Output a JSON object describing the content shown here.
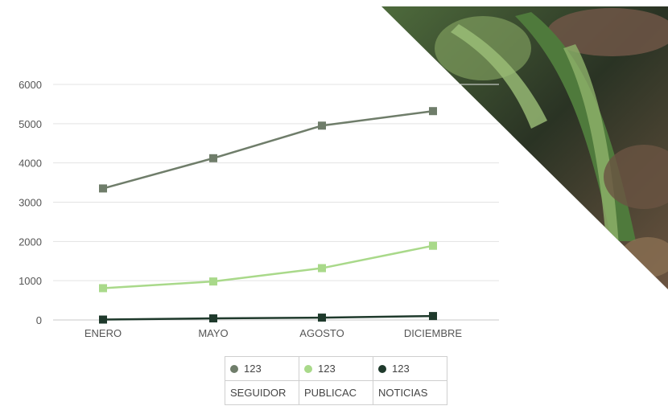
{
  "chart_data": {
    "type": "line",
    "title": "",
    "xlabel": "",
    "ylabel": "",
    "categories": [
      "ENERO",
      "MAYO",
      "AGOSTO",
      "DICIEMBRE"
    ],
    "ylim": [
      0,
      6000
    ],
    "yticks": [
      0,
      1000,
      2000,
      3000,
      4000,
      5000,
      6000
    ],
    "grid": true,
    "legend_placement": "bottom",
    "series": [
      {
        "name": "SEGUIDOR",
        "legend_value": "123",
        "color": "#6f7d6a",
        "values": [
          3350,
          4120,
          4950,
          5320
        ]
      },
      {
        "name": "PUBLICAC",
        "legend_value": "123",
        "color": "#a9d98a",
        "values": [
          810,
          980,
          1320,
          1890
        ]
      },
      {
        "name": "NOTICIAS",
        "legend_value": "123",
        "color": "#1f3a2c",
        "values": [
          10,
          40,
          60,
          100
        ]
      }
    ]
  },
  "background": {
    "photo": "green-leaves",
    "colors": [
      "#3f5a33",
      "#7a9a5a",
      "#5a4637",
      "#232a20"
    ]
  }
}
